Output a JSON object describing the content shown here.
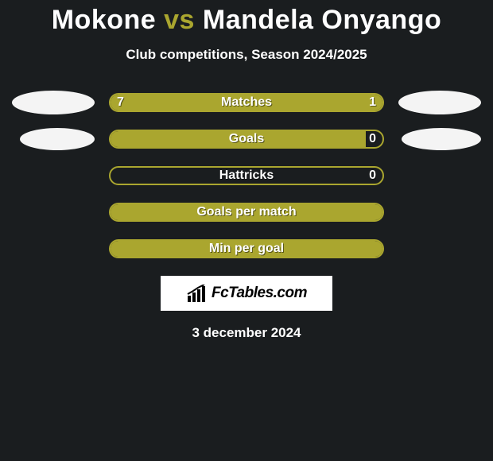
{
  "title": {
    "player1": "Mokone",
    "vs": "vs",
    "player2": "Mandela Onyango"
  },
  "subtitle": "Club competitions, Season 2024/2025",
  "colors": {
    "accent": "#aaa62f",
    "bg": "#1a1d1f",
    "text": "#ffffff",
    "avatar": "#f4f4f4",
    "brand_bg": "#ffffff",
    "brand_text": "#000000"
  },
  "stats": [
    {
      "label": "Matches",
      "left_val": "7",
      "right_val": "1",
      "left_pct": 78,
      "right_pct": 22,
      "show_left_avatar": true,
      "show_right_avatar": true,
      "avatar_size": "big"
    },
    {
      "label": "Goals",
      "left_val": "",
      "right_val": "0",
      "left_pct": 94,
      "right_pct": 0,
      "show_left_avatar": true,
      "show_right_avatar": true,
      "avatar_size": "small"
    },
    {
      "label": "Hattricks",
      "left_val": "",
      "right_val": "0",
      "left_pct": 0,
      "right_pct": 0,
      "show_left_avatar": false,
      "show_right_avatar": false
    },
    {
      "label": "Goals per match",
      "left_val": "",
      "right_val": "",
      "left_pct": 100,
      "right_pct": 0,
      "show_left_avatar": false,
      "show_right_avatar": false
    },
    {
      "label": "Min per goal",
      "left_val": "",
      "right_val": "",
      "left_pct": 100,
      "right_pct": 0,
      "show_left_avatar": false,
      "show_right_avatar": false
    }
  ],
  "brand": "FcTables.com",
  "date": "3 december 2024"
}
